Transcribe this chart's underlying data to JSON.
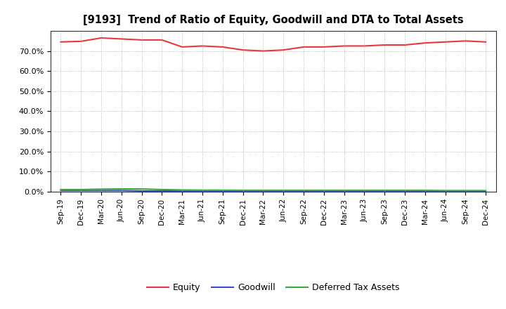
{
  "title": "[9193]  Trend of Ratio of Equity, Goodwill and DTA to Total Assets",
  "x_labels": [
    "Sep-19",
    "Dec-19",
    "Mar-20",
    "Jun-20",
    "Sep-20",
    "Dec-20",
    "Mar-21",
    "Jun-21",
    "Sep-21",
    "Dec-21",
    "Mar-22",
    "Jun-22",
    "Sep-22",
    "Dec-22",
    "Mar-23",
    "Jun-23",
    "Sep-23",
    "Dec-23",
    "Mar-24",
    "Jun-24",
    "Sep-24",
    "Dec-24"
  ],
  "equity": [
    74.5,
    74.8,
    76.5,
    76.0,
    75.5,
    75.5,
    72.0,
    72.5,
    72.0,
    70.5,
    70.0,
    70.5,
    72.0,
    72.0,
    72.5,
    72.5,
    73.0,
    73.0,
    74.0,
    74.5,
    75.0,
    74.5
  ],
  "goodwill": [
    0.5,
    0.5,
    0.5,
    0.5,
    0.3,
    0.3,
    0.2,
    0.2,
    0.2,
    0.2,
    0.2,
    0.2,
    0.2,
    0.2,
    0.2,
    0.2,
    0.2,
    0.2,
    0.2,
    0.2,
    0.2,
    0.2
  ],
  "dta": [
    1.0,
    1.0,
    1.2,
    1.3,
    1.3,
    1.0,
    0.8,
    0.7,
    0.7,
    0.6,
    0.6,
    0.6,
    0.6,
    0.6,
    0.6,
    0.6,
    0.6,
    0.6,
    0.6,
    0.5,
    0.5,
    0.5
  ],
  "equity_color": "#e8383d",
  "goodwill_color": "#3050c8",
  "dta_color": "#38a838",
  "ylim": [
    0,
    80
  ],
  "yticks": [
    0,
    10,
    20,
    30,
    40,
    50,
    60,
    70
  ],
  "ytick_labels": [
    "0.0%",
    "10.0%",
    "20.0%",
    "30.0%",
    "40.0%",
    "50.0%",
    "60.0%",
    "70.0%"
  ],
  "background_color": "#ffffff",
  "plot_bg_color": "#ffffff",
  "grid_color": "#aaaaaa",
  "legend_labels": [
    "Equity",
    "Goodwill",
    "Deferred Tax Assets"
  ]
}
